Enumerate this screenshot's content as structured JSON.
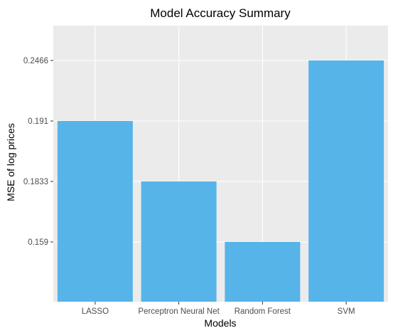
{
  "chart_data": {
    "type": "bar",
    "title": "Model Accuracy Summary",
    "xlabel": "Models",
    "ylabel": "MSE of log prices",
    "categories": [
      "LASSO",
      "Perceptron Neural Net",
      "Random Forest",
      "SVM"
    ],
    "values": [
      0.191,
      0.1833,
      0.159,
      0.2466
    ],
    "y_tick_labels": [
      "0.159",
      "0.1833",
      "0.191",
      "0.2466"
    ],
    "y_scale": "ordinal",
    "grid": true,
    "legend": "none",
    "colors": {
      "bar": "#56B4E9",
      "panel": "#EBEBEB",
      "grid": "#FFFFFF",
      "tick": "#333333"
    }
  }
}
